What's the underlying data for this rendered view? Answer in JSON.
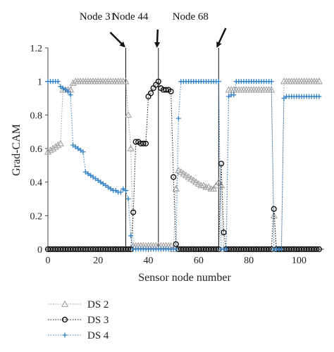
{
  "chart_data": {
    "type": "line",
    "xlabel": "Sensor node number",
    "ylabel": "Grad-CAM",
    "xlim": [
      0,
      110
    ],
    "ylim": [
      0,
      1.2
    ],
    "xticks": [
      0,
      20,
      40,
      60,
      80,
      100
    ],
    "yticks": [
      0,
      0.2,
      0.4,
      0.6,
      0.8,
      1,
      1.2
    ],
    "ytick_labels": [
      "0",
      "0.2",
      "0.4",
      "0.6",
      "0.8",
      "1",
      "1.2"
    ],
    "grid": false,
    "legend_position": "bottom-left",
    "vlines": [
      {
        "x": 31,
        "label": "Node 31"
      },
      {
        "x": 44,
        "label": "Node 44"
      },
      {
        "x": 68,
        "label": "Node 68"
      }
    ],
    "series": [
      {
        "name": "DS 2",
        "color": "#9a9a9a",
        "marker": "triangle",
        "x": [
          0,
          1,
          2,
          3,
          4,
          5,
          6,
          7,
          8,
          9,
          10,
          11,
          12,
          13,
          14,
          15,
          16,
          17,
          18,
          19,
          20,
          21,
          22,
          23,
          24,
          25,
          26,
          27,
          28,
          29,
          30,
          31,
          32,
          33,
          34,
          35,
          36,
          37,
          38,
          39,
          40,
          41,
          42,
          43,
          44,
          45,
          46,
          47,
          48,
          49,
          50,
          51,
          52,
          53,
          54,
          55,
          56,
          57,
          58,
          59,
          60,
          61,
          62,
          63,
          64,
          65,
          66,
          67,
          68,
          69,
          70,
          71,
          72,
          73,
          74,
          75,
          76,
          77,
          78,
          79,
          80,
          81,
          82,
          83,
          84,
          85,
          86,
          87,
          88,
          89,
          90,
          91,
          92,
          93,
          94,
          95,
          96,
          97,
          98,
          99,
          100,
          101,
          102,
          103,
          104,
          105,
          106,
          107,
          108
        ],
        "values": [
          0.58,
          0.59,
          0.6,
          0.61,
          0.62,
          0.63,
          0.95,
          0.95,
          0.95,
          0.95,
          0.99,
          1.0,
          1.0,
          1.0,
          1.0,
          1.0,
          1.0,
          1.0,
          1.0,
          1.0,
          1.0,
          1.0,
          1.0,
          1.0,
          1.0,
          1.0,
          1.0,
          1.0,
          1.0,
          1.0,
          1.0,
          1.0,
          0.8,
          0.6,
          0.02,
          0.02,
          0.02,
          0.02,
          0.02,
          0.02,
          0.02,
          0.02,
          0.02,
          0.02,
          0.02,
          0.02,
          0.02,
          0.02,
          0.02,
          0.02,
          0.0,
          0.36,
          0.47,
          0.46,
          0.45,
          0.44,
          0.43,
          0.42,
          0.41,
          0.4,
          0.39,
          0.38,
          0.38,
          0.37,
          0.37,
          0.36,
          0.36,
          0.38,
          0.4,
          0.38,
          0.0,
          0.0,
          0.95,
          0.95,
          0.95,
          0.95,
          0.95,
          0.95,
          0.95,
          0.95,
          0.95,
          0.95,
          0.95,
          0.95,
          0.95,
          0.95,
          0.95,
          0.95,
          0.95,
          0.95,
          0.2,
          0.0,
          0.0,
          0.0,
          1.0,
          1.0,
          1.0,
          1.0,
          1.0,
          1.0,
          1.0,
          1.0,
          1.0,
          1.0,
          1.0,
          1.0,
          1.0,
          1.0,
          1.0
        ]
      },
      {
        "name": "DS 3",
        "color": "#111111",
        "marker": "circle",
        "x": [
          0,
          1,
          2,
          3,
          4,
          5,
          6,
          7,
          8,
          9,
          10,
          11,
          12,
          13,
          14,
          15,
          16,
          17,
          18,
          19,
          20,
          21,
          22,
          23,
          24,
          25,
          26,
          27,
          28,
          29,
          30,
          31,
          32,
          33,
          34,
          35,
          36,
          37,
          38,
          39,
          40,
          41,
          42,
          43,
          44,
          45,
          46,
          47,
          48,
          49,
          50,
          51,
          52,
          53,
          54,
          55,
          56,
          57,
          58,
          59,
          60,
          61,
          62,
          63,
          64,
          65,
          66,
          67,
          68,
          69,
          70,
          71,
          72,
          73,
          74,
          75,
          76,
          77,
          78,
          79,
          80,
          81,
          82,
          83,
          84,
          85,
          86,
          87,
          88,
          89,
          90,
          91,
          92,
          93,
          94,
          95,
          96,
          97,
          98,
          99,
          100,
          101,
          102,
          103,
          104,
          105,
          106,
          107,
          108
        ],
        "values": [
          0.0,
          0.0,
          0.0,
          0.0,
          0.0,
          0.0,
          0.0,
          0.0,
          0.0,
          0.0,
          0.0,
          0.0,
          0.0,
          0.0,
          0.0,
          0.0,
          0.0,
          0.0,
          0.0,
          0.0,
          0.0,
          0.0,
          0.0,
          0.0,
          0.0,
          0.0,
          0.0,
          0.0,
          0.0,
          0.0,
          0.0,
          0.0,
          0.0,
          0.0,
          0.22,
          0.64,
          0.64,
          0.63,
          0.63,
          0.63,
          0.91,
          0.93,
          0.96,
          0.98,
          1.0,
          0.96,
          0.95,
          0.95,
          0.95,
          0.94,
          0.43,
          0.03,
          0.0,
          0.0,
          0.0,
          0.0,
          0.0,
          0.0,
          0.0,
          0.0,
          0.0,
          0.0,
          0.0,
          0.0,
          0.0,
          0.0,
          0.0,
          0.0,
          0.0,
          0.51,
          0.1,
          0.0,
          0.0,
          0.0,
          0.0,
          0.0,
          0.0,
          0.0,
          0.0,
          0.0,
          0.0,
          0.0,
          0.0,
          0.0,
          0.0,
          0.0,
          0.0,
          0.0,
          0.0,
          0.0,
          0.24,
          0.0,
          0.0,
          0.0,
          0.0,
          0.0,
          0.0,
          0.0,
          0.0,
          0.0,
          0.0,
          0.0,
          0.0,
          0.0,
          0.0,
          0.0,
          0.0,
          0.0,
          0.0
        ]
      },
      {
        "name": "DS 4",
        "color": "#2f7fc8",
        "marker": "plus",
        "x": [
          0,
          1,
          2,
          3,
          4,
          5,
          6,
          7,
          8,
          9,
          10,
          11,
          12,
          13,
          14,
          15,
          16,
          17,
          18,
          19,
          20,
          21,
          22,
          23,
          24,
          25,
          26,
          27,
          28,
          29,
          30,
          31,
          32,
          33,
          34,
          35,
          36,
          37,
          38,
          39,
          40,
          41,
          42,
          43,
          44,
          45,
          46,
          47,
          48,
          49,
          50,
          51,
          52,
          53,
          54,
          55,
          56,
          57,
          58,
          59,
          60,
          61,
          62,
          63,
          64,
          65,
          66,
          67,
          68,
          69,
          70,
          71,
          72,
          73,
          74,
          75,
          76,
          77,
          78,
          79,
          80,
          81,
          82,
          83,
          84,
          85,
          86,
          87,
          88,
          89,
          90,
          91,
          92,
          93,
          94,
          95,
          96,
          97,
          98,
          99,
          100,
          101,
          102,
          103,
          104,
          105,
          106,
          107,
          108
        ],
        "values": [
          1.0,
          1.0,
          1.0,
          1.0,
          1.0,
          0.97,
          0.96,
          0.95,
          0.94,
          0.92,
          0.62,
          0.61,
          0.6,
          0.59,
          0.58,
          0.46,
          0.45,
          0.44,
          0.43,
          0.42,
          0.41,
          0.4,
          0.39,
          0.38,
          0.37,
          0.36,
          0.35,
          0.35,
          0.34,
          0.34,
          0.36,
          0.35,
          0.3,
          0.08,
          0.0,
          0.0,
          0.0,
          0.0,
          0.0,
          0.0,
          0.0,
          0.0,
          0.0,
          0.0,
          0.0,
          0.0,
          0.0,
          0.0,
          0.0,
          0.0,
          0.0,
          0.0,
          0.78,
          1.0,
          1.0,
          1.0,
          1.0,
          1.0,
          1.0,
          1.0,
          1.0,
          1.0,
          1.0,
          1.0,
          1.0,
          1.0,
          1.0,
          1.0,
          1.0,
          0.0,
          0.0,
          0.0,
          0.91,
          0.92,
          0.92,
          1.0,
          1.0,
          1.0,
          1.0,
          1.0,
          1.0,
          1.0,
          1.0,
          1.0,
          1.0,
          1.0,
          1.0,
          1.0,
          1.0,
          1.0,
          0.0,
          0.0,
          0.0,
          0.0,
          0.9,
          0.91,
          0.91,
          0.91,
          0.91,
          0.91,
          0.91,
          0.91,
          0.91,
          0.91,
          0.91,
          0.91,
          0.91,
          0.91,
          0.91
        ]
      }
    ]
  }
}
